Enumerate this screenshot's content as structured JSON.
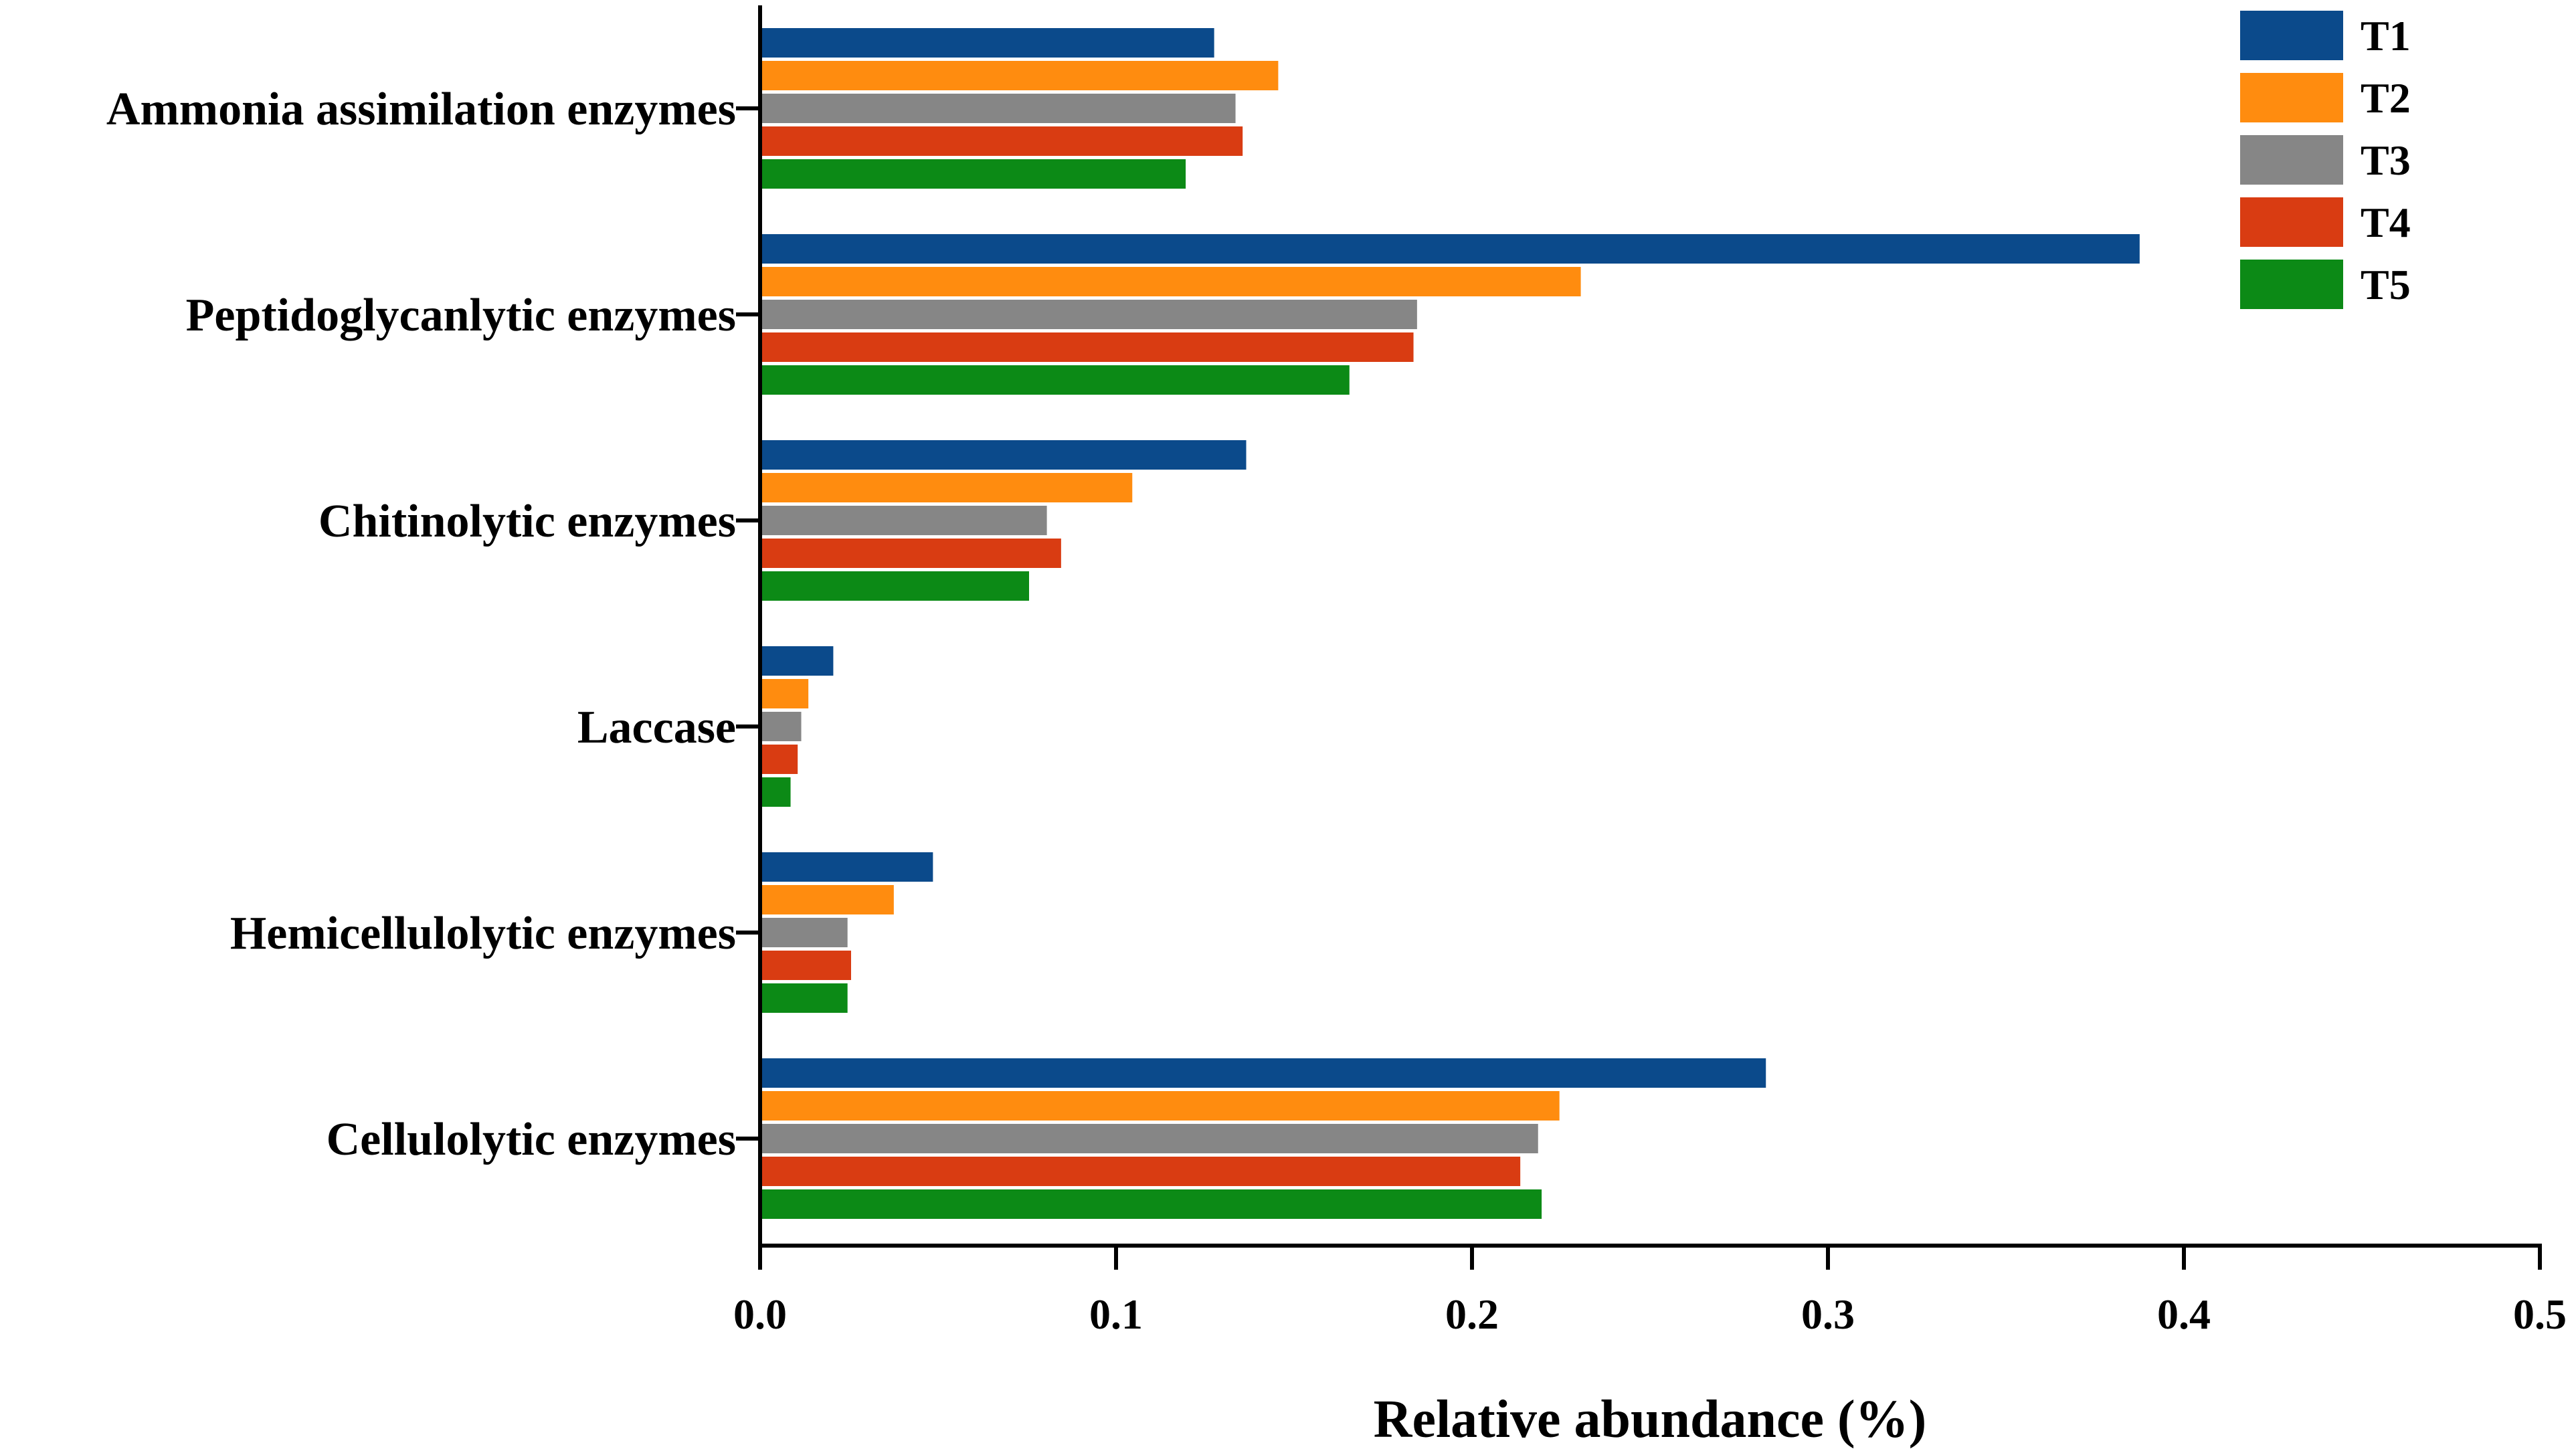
{
  "chart_data": {
    "type": "bar",
    "orientation": "horizontal",
    "title": "",
    "xlabel": "Relative abundance (%)",
    "ylabel": "",
    "xlim": [
      0,
      0.5
    ],
    "xticks": [
      "0.0",
      "0.1",
      "0.2",
      "0.3",
      "0.4",
      "0.5"
    ],
    "grid": false,
    "legend_position": "top-right",
    "categories": [
      "Ammonia assimilation enzymes",
      "Peptidoglycanlytic enzymes",
      "Chitinolytic enzymes",
      "Laccase",
      "Hemicellulolytic enzymes",
      "Cellulolytic enzymes"
    ],
    "series": [
      {
        "name": "T1",
        "color": "#0b4a8b",
        "values": [
          0.127,
          0.387,
          0.136,
          0.02,
          0.048,
          0.282
        ]
      },
      {
        "name": "T2",
        "color": "#ff8c0f",
        "values": [
          0.145,
          0.23,
          0.104,
          0.013,
          0.037,
          0.224
        ]
      },
      {
        "name": "T3",
        "color": "#868686",
        "values": [
          0.133,
          0.184,
          0.08,
          0.011,
          0.024,
          0.218
        ]
      },
      {
        "name": "T4",
        "color": "#d93c12",
        "values": [
          0.135,
          0.183,
          0.084,
          0.01,
          0.025,
          0.213
        ]
      },
      {
        "name": "T5",
        "color": "#0c8a16",
        "values": [
          0.119,
          0.165,
          0.075,
          0.008,
          0.024,
          0.219
        ]
      }
    ]
  }
}
